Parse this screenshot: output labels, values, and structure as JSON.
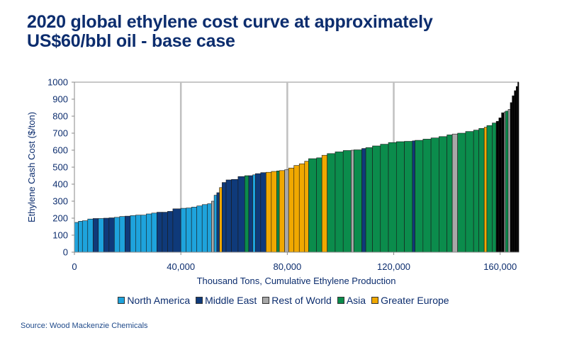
{
  "title_line1": "2020 global ethylene cost curve at approximately",
  "title_line2": "US$60/bbl oil - base case",
  "source": "Source: Wood Mackenzie Chemicals",
  "chart_data": {
    "type": "bar",
    "subtype": "cost-curve (variable-width bars)",
    "title": "2020 global ethylene cost curve at approximately US$60/bbl oil - base case",
    "xlabel": "Thousand Tons, Cumulative Ethylene Production",
    "ylabel": "Ethylene Cash Cost ($/ton)",
    "xlim": [
      0,
      167000
    ],
    "ylim": [
      0,
      1000
    ],
    "xticks": [
      0,
      40000,
      80000,
      120000,
      160000
    ],
    "xtick_labels": [
      "0",
      "40,000",
      "80,000",
      "120,000",
      "160,000"
    ],
    "yticks": [
      0,
      100,
      200,
      300,
      400,
      500,
      600,
      700,
      800,
      900,
      1000
    ],
    "grid": "vertical gridlines at 40,000 / 80,000 / 120,000",
    "legend_position": "bottom",
    "legend": [
      {
        "key": "NA",
        "name": "North America",
        "color": "#1ea3dc"
      },
      {
        "key": "ME",
        "name": "Middle East",
        "color": "#0f3a7a"
      },
      {
        "key": "RW",
        "name": "Rest of World",
        "color": "#a8a8a8"
      },
      {
        "key": "AS",
        "name": "Asia",
        "color": "#0b8c4c"
      },
      {
        "key": "GE",
        "name": "Greater Europe",
        "color": "#f0a800"
      }
    ],
    "unlabeled_color": "#000000",
    "segments_columns": [
      "start_kt",
      "end_kt",
      "cost",
      "region"
    ],
    "segments": [
      [
        0,
        1500,
        175,
        "NA"
      ],
      [
        1500,
        3000,
        182,
        "NA"
      ],
      [
        3000,
        5000,
        185,
        "NA"
      ],
      [
        5000,
        7000,
        195,
        "NA"
      ],
      [
        7000,
        9000,
        198,
        "ME"
      ],
      [
        9000,
        11000,
        198,
        "NA"
      ],
      [
        11000,
        13000,
        200,
        "ME"
      ],
      [
        13000,
        15000,
        202,
        "ME"
      ],
      [
        15000,
        17000,
        205,
        "NA"
      ],
      [
        17000,
        19000,
        210,
        "NA"
      ],
      [
        19000,
        21000,
        212,
        "ME"
      ],
      [
        21000,
        23000,
        215,
        "NA"
      ],
      [
        23000,
        25000,
        218,
        "NA"
      ],
      [
        25000,
        27000,
        218,
        "NA"
      ],
      [
        27000,
        29000,
        225,
        "NA"
      ],
      [
        29000,
        31000,
        230,
        "NA"
      ],
      [
        31000,
        33000,
        235,
        "ME"
      ],
      [
        33000,
        35000,
        235,
        "ME"
      ],
      [
        35000,
        37000,
        240,
        "ME"
      ],
      [
        37000,
        40000,
        255,
        "ME"
      ],
      [
        40000,
        42000,
        258,
        "NA"
      ],
      [
        42000,
        44000,
        260,
        "NA"
      ],
      [
        44000,
        46000,
        265,
        "NA"
      ],
      [
        46000,
        48000,
        272,
        "NA"
      ],
      [
        48000,
        50000,
        280,
        "NA"
      ],
      [
        50000,
        51500,
        285,
        "NA"
      ],
      [
        51500,
        52500,
        300,
        "RW"
      ],
      [
        52500,
        53500,
        335,
        "NA"
      ],
      [
        53500,
        54500,
        350,
        "ME"
      ],
      [
        54500,
        55500,
        380,
        "GE"
      ],
      [
        55500,
        57000,
        410,
        "ME"
      ],
      [
        57000,
        59000,
        425,
        "ME"
      ],
      [
        59000,
        61500,
        428,
        "ME"
      ],
      [
        61500,
        64000,
        445,
        "ME"
      ],
      [
        64000,
        65500,
        450,
        "AS"
      ],
      [
        65500,
        67000,
        450,
        "ME"
      ],
      [
        67000,
        68000,
        455,
        "NA"
      ],
      [
        68000,
        70000,
        462,
        "ME"
      ],
      [
        70000,
        72000,
        468,
        "ME"
      ],
      [
        72000,
        74000,
        470,
        "GE"
      ],
      [
        74000,
        76000,
        475,
        "GE"
      ],
      [
        76000,
        77000,
        478,
        "AS"
      ],
      [
        77000,
        79000,
        480,
        "GE"
      ],
      [
        79000,
        80500,
        485,
        "RW"
      ],
      [
        80500,
        82500,
        495,
        "GE"
      ],
      [
        82500,
        84500,
        510,
        "GE"
      ],
      [
        84500,
        86500,
        520,
        "GE"
      ],
      [
        86500,
        88000,
        535,
        "GE"
      ],
      [
        88000,
        91000,
        550,
        "AS"
      ],
      [
        91000,
        93000,
        555,
        "AS"
      ],
      [
        93000,
        95000,
        570,
        "GE"
      ],
      [
        95000,
        98000,
        580,
        "AS"
      ],
      [
        98000,
        101000,
        590,
        "AS"
      ],
      [
        101000,
        104000,
        598,
        "AS"
      ],
      [
        104000,
        105000,
        600,
        "RW"
      ],
      [
        105000,
        108000,
        602,
        "AS"
      ],
      [
        108000,
        109500,
        610,
        "ME"
      ],
      [
        109500,
        112000,
        615,
        "AS"
      ],
      [
        112000,
        115000,
        625,
        "AS"
      ],
      [
        115000,
        118000,
        635,
        "AS"
      ],
      [
        118000,
        121000,
        645,
        "AS"
      ],
      [
        121000,
        124000,
        650,
        "AS"
      ],
      [
        124000,
        127000,
        652,
        "AS"
      ],
      [
        127000,
        128000,
        655,
        "ME"
      ],
      [
        128000,
        131000,
        658,
        "AS"
      ],
      [
        131000,
        134000,
        665,
        "AS"
      ],
      [
        134000,
        137000,
        672,
        "AS"
      ],
      [
        137000,
        140000,
        680,
        "AS"
      ],
      [
        140000,
        142000,
        690,
        "AS"
      ],
      [
        142000,
        144000,
        695,
        "RW"
      ],
      [
        144000,
        147000,
        700,
        "AS"
      ],
      [
        147000,
        150000,
        710,
        "AS"
      ],
      [
        150000,
        152000,
        718,
        "AS"
      ],
      [
        152000,
        154000,
        728,
        "AS"
      ],
      [
        154000,
        155000,
        735,
        "GE"
      ],
      [
        155000,
        157000,
        745,
        "AS"
      ],
      [
        157000,
        158500,
        760,
        "AS"
      ],
      [
        158500,
        159500,
        770,
        "other"
      ],
      [
        159500,
        160500,
        790,
        "other"
      ],
      [
        160500,
        161500,
        820,
        "other"
      ],
      [
        161500,
        162000,
        825,
        "RW"
      ],
      [
        162000,
        163000,
        830,
        "AS"
      ],
      [
        163000,
        163800,
        840,
        "RW"
      ],
      [
        163800,
        164500,
        880,
        "other"
      ],
      [
        164500,
        165300,
        920,
        "other"
      ],
      [
        165300,
        166000,
        950,
        "other"
      ],
      [
        166000,
        166600,
        975,
        "other"
      ],
      [
        166600,
        167000,
        1000,
        "other"
      ]
    ]
  }
}
